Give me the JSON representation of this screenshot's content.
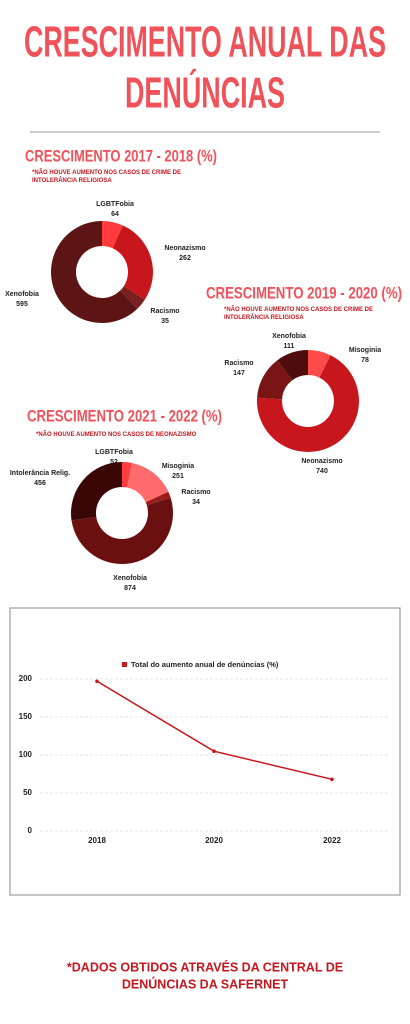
{
  "title": [
    "CRESCIMENTO ANUAL DAS",
    "DENÚNCIAS"
  ],
  "chart_data": [
    {
      "type": "donut",
      "title": "CRESCIMENTO 2017 - 2018 (%)",
      "note": "*NÃO HOUVE AUMENTO NOS CASOS DE CRIME DE INTOLERÂNCIA RELIGIOSA",
      "categories": [
        "LGBTFobia",
        "Neonazismo",
        "Racismo",
        "Xenofobia"
      ],
      "values": [
        64,
        262,
        35,
        595
      ],
      "colors": [
        "#ff3b3b",
        "#c8161d",
        "#7a1f1f",
        "#5c1414"
      ]
    },
    {
      "type": "donut",
      "title": "CRESCIMENTO 2019 - 2020 (%)",
      "note": "*NÃO HOUVE AUMENTO NOS CASOS DE CRIME DE INTOLERÂNCIA RELIGIOSA",
      "categories": [
        "Misoginia",
        "Neonazismo",
        "Racismo",
        "Xenofobia"
      ],
      "values": [
        78,
        740,
        147,
        111
      ],
      "colors": [
        "#ff4a4a",
        "#c8161d",
        "#7a1515",
        "#4f0c0c"
      ]
    },
    {
      "type": "donut",
      "title": "CRESCIMENTO 2021 - 2022 (%)",
      "note": "*NÃO HOUVE AUMENTO NOS CASOS DE NEONAZISMO",
      "categories": [
        "LGBTFobia",
        "Misoginia",
        "Racismo",
        "Xenofobia",
        "Intolerância Relig."
      ],
      "values": [
        52,
        251,
        34,
        874,
        456
      ],
      "colors": [
        "#ff3b3b",
        "#ff6b6b",
        "#9b1c1c",
        "#6b1010",
        "#3a0606"
      ]
    },
    {
      "type": "line",
      "categories": [
        "2018",
        "2020",
        "2022"
      ],
      "series": [
        {
          "name": "Total do aumento anual de denúncias (%)",
          "color": "#c8161d",
          "values": [
            197,
            105,
            68
          ]
        }
      ],
      "ylim": [
        0,
        200
      ],
      "yticks": [
        0,
        50,
        100,
        150,
        200
      ],
      "grid": true
    }
  ],
  "footer": [
    "*DADOS OBTIDOS ATRAVÉS DA CENTRAL DE",
    "DENÚNCIAS DA SAFERNET"
  ]
}
